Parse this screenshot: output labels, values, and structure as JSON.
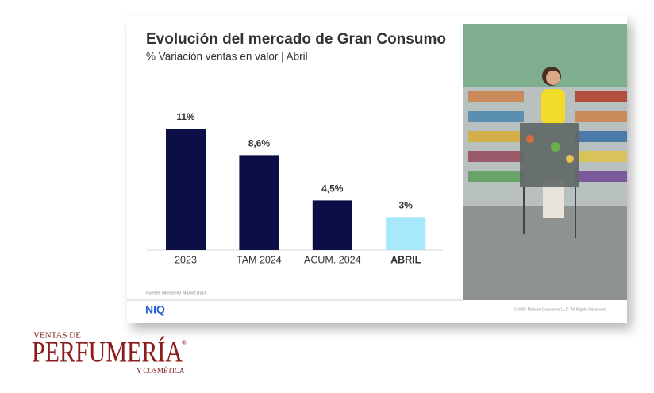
{
  "chart_data": {
    "type": "bar",
    "title": "Evolución del mercado de Gran Consumo",
    "subtitle": "% Variación ventas en valor | Abril",
    "categories": [
      "2023",
      "TAM 2024",
      "ACUM. 2024",
      "ABRIL"
    ],
    "values": [
      11,
      8.6,
      4.5,
      3
    ],
    "value_labels": [
      "11%",
      "8,6%",
      "4,5%",
      "3%"
    ],
    "colors": [
      "#0b0f46",
      "#0b0f46",
      "#0b0f46",
      "#a7e8fb"
    ],
    "source": "Fuente: NielsenIQ MarketTrack"
  },
  "footer": {
    "brand": "NIQ",
    "copyright": "© 2025 Nielsen Consumer LLC. All Rights Reserved."
  },
  "logo": {
    "top": "VENTAS DE",
    "main": "PERFUMERÍA",
    "mark": "®",
    "bottom": "Y COSMÉTICA"
  }
}
